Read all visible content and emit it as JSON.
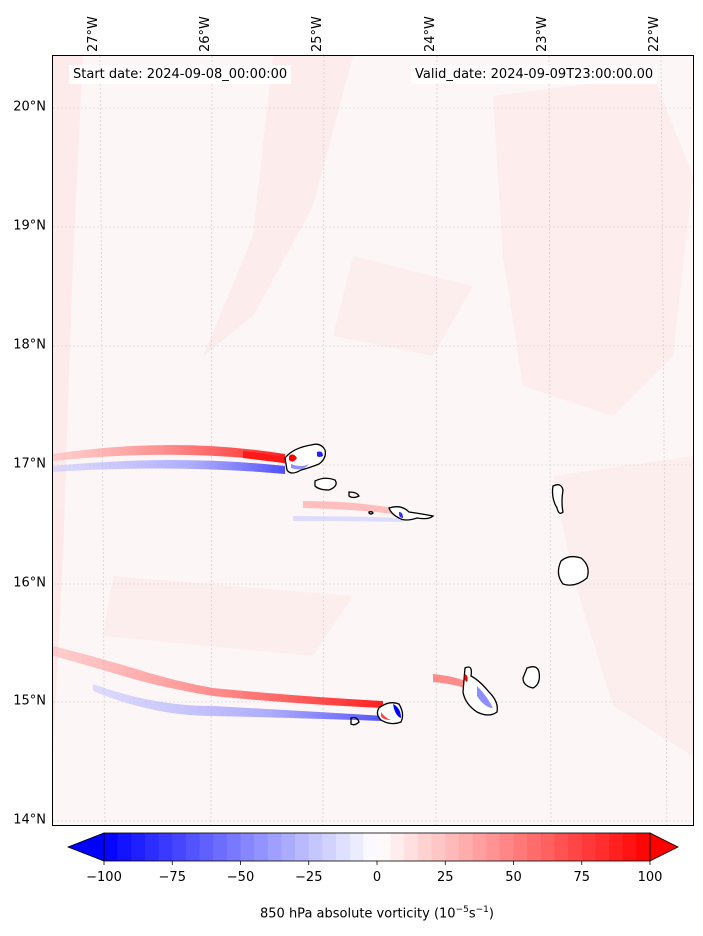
{
  "map": {
    "projection_note": "",
    "lat_labels": [
      "20°N",
      "19°N",
      "18°N",
      "17°N",
      "16°N",
      "15°N",
      "14°N"
    ],
    "lon_labels": [
      "27°W",
      "26°W",
      "25°W",
      "24°W",
      "23°W",
      "22°W"
    ],
    "start_date": "Start date: 2024-09-08_00:00:00",
    "valid_date": "Valid_date: 2024-09-09T23:00:00.00",
    "field_colors": {
      "positive": "#ff0000",
      "negative": "#0000ff",
      "neutral": "#ffffff"
    }
  },
  "colorbar": {
    "ticks": [
      "−100",
      "−75",
      "−50",
      "−25",
      "0",
      "25",
      "50",
      "75",
      "100"
    ],
    "tick_values": [
      -100,
      -75,
      -50,
      -25,
      0,
      25,
      50,
      75,
      100
    ],
    "range": [
      -100,
      100
    ],
    "extend": "both",
    "label_prefix": "850 hPa absolute vorticity (10",
    "label_exp1": "−5",
    "label_mid": "s",
    "label_exp2": "−1",
    "label_suffix": ")"
  }
}
